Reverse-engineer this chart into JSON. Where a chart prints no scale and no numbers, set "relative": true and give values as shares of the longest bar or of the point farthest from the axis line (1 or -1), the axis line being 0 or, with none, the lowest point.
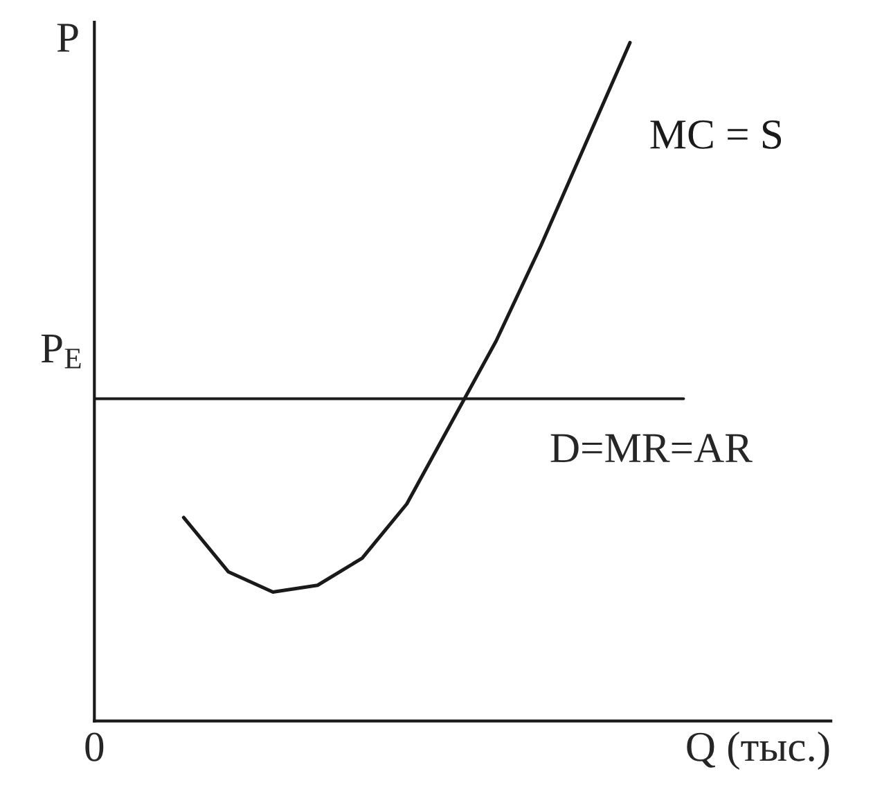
{
  "chart_data": {
    "type": "line",
    "relative": true,
    "ylabel": "P",
    "xlabel": "Q (тыс.)",
    "categories": [
      null,
      null,
      null,
      null,
      null,
      null,
      null,
      null,
      null,
      null,
      null,
      null,
      null,
      null,
      null,
      null,
      null
    ],
    "series": [
      {
        "name": "MC = S",
        "color": "#1a1a1a",
        "values": [
          null,
          null,
          0.3,
          0.22,
          0.19,
          0.2,
          0.24,
          0.32,
          0.44,
          0.56,
          0.7,
          0.85,
          1.0,
          null,
          null,
          null,
          null
        ]
      }
    ],
    "ref_lines": [
      {
        "axis": "y",
        "value": 0.475,
        "label": "D=MR=AR",
        "color": "#1a1a1a"
      }
    ],
    "annotations": [
      "P$_{E}$",
      "0"
    ],
    "marker": "none",
    "line_style": "solid"
  }
}
